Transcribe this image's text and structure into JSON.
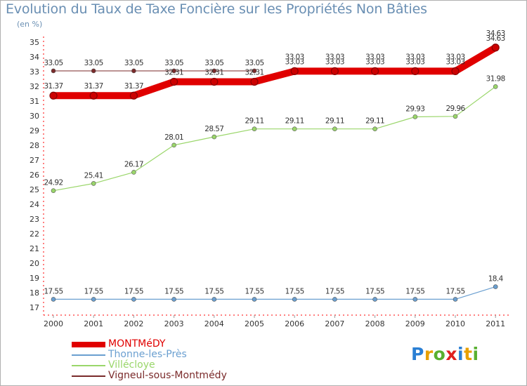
{
  "chart_data": {
    "type": "line",
    "title": "Evolution du Taux de Taxe Foncière sur les Propriétés Non Bâties",
    "ylabel": "(en %)",
    "xlabel": "",
    "ylim": [
      17,
      35
    ],
    "y_ticks": [
      "17",
      "18",
      "19",
      "20",
      "21",
      "22",
      "23",
      "24",
      "25",
      "26",
      "27",
      "28",
      "29",
      "30",
      "31",
      "32",
      "33",
      "34",
      "35"
    ],
    "categories": [
      "2000",
      "2001",
      "2002",
      "2003",
      "2004",
      "2005",
      "2006",
      "2007",
      "2008",
      "2009",
      "2010",
      "2011"
    ],
    "series": [
      {
        "name": "Vigneul-sous-Montmédy",
        "color": "#7a2a2a",
        "values": [
          33.05,
          33.05,
          33.05,
          33.05,
          33.05,
          33.05,
          null,
          null,
          null,
          null,
          null,
          null
        ],
        "labels": [
          "33.05",
          "33.05",
          "33.05",
          "33.05",
          "33.05",
          "33.05",
          "",
          "",
          "",
          "",
          "",
          ""
        ]
      },
      {
        "name": "Thonne-les-Près",
        "color": "#6a9fd0",
        "values": [
          17.55,
          17.55,
          17.55,
          17.55,
          17.55,
          17.55,
          17.55,
          17.55,
          17.55,
          17.55,
          17.55,
          18.4
        ],
        "labels": [
          "17.55",
          "17.55",
          "17.55",
          "17.55",
          "17.55",
          "17.55",
          "17.55",
          "17.55",
          "17.55",
          "17.55",
          "17.55",
          "18.4"
        ]
      },
      {
        "name": "Villécloye",
        "color": "#9ad66a",
        "values": [
          24.92,
          25.41,
          26.17,
          28.01,
          28.57,
          29.11,
          29.11,
          29.11,
          29.11,
          29.93,
          29.96,
          31.98
        ],
        "labels": [
          "24.92",
          "25.41",
          "26.17",
          "28.01",
          "28.57",
          "29.11",
          "29.11",
          "29.11",
          "29.11",
          "29.93",
          "29.96",
          "31.98"
        ]
      },
      {
        "name": "MONTMéDY",
        "color": "#e00000",
        "values": [
          31.37,
          31.37,
          31.37,
          32.31,
          32.31,
          32.31,
          33.03,
          33.03,
          33.03,
          33.03,
          33.03,
          34.63
        ],
        "labels": [
          "31.37",
          "31.37",
          "31.37",
          "32.31",
          "32.31",
          "32.31",
          "33.03",
          "33.03",
          "33.03",
          "33.03",
          "33.03",
          "34.63"
        ]
      }
    ],
    "overlap_labels": [
      "33.03",
      "33.03",
      "33.03",
      "33.03",
      "33.03",
      "34.63"
    ],
    "legend": [
      {
        "name": "MONTMéDY",
        "color": "#e00000"
      },
      {
        "name": "Thonne-les-Près",
        "color": "#6a9fd0"
      },
      {
        "name": "Villécloye",
        "color": "#9ad66a"
      },
      {
        "name": "Vigneul-sous-Montmédy",
        "color": "#7a2a2a"
      }
    ],
    "legend_placement": "bottom-left",
    "grid": false
  },
  "brand": {
    "letters": [
      "P",
      "r",
      "o",
      "x",
      "i",
      "t",
      "i"
    ],
    "colors": [
      "#2a7fd4",
      "#e8a000",
      "#58b030",
      "#e02020",
      "#2a7fd4",
      "#e8a000",
      "#58b030"
    ]
  }
}
